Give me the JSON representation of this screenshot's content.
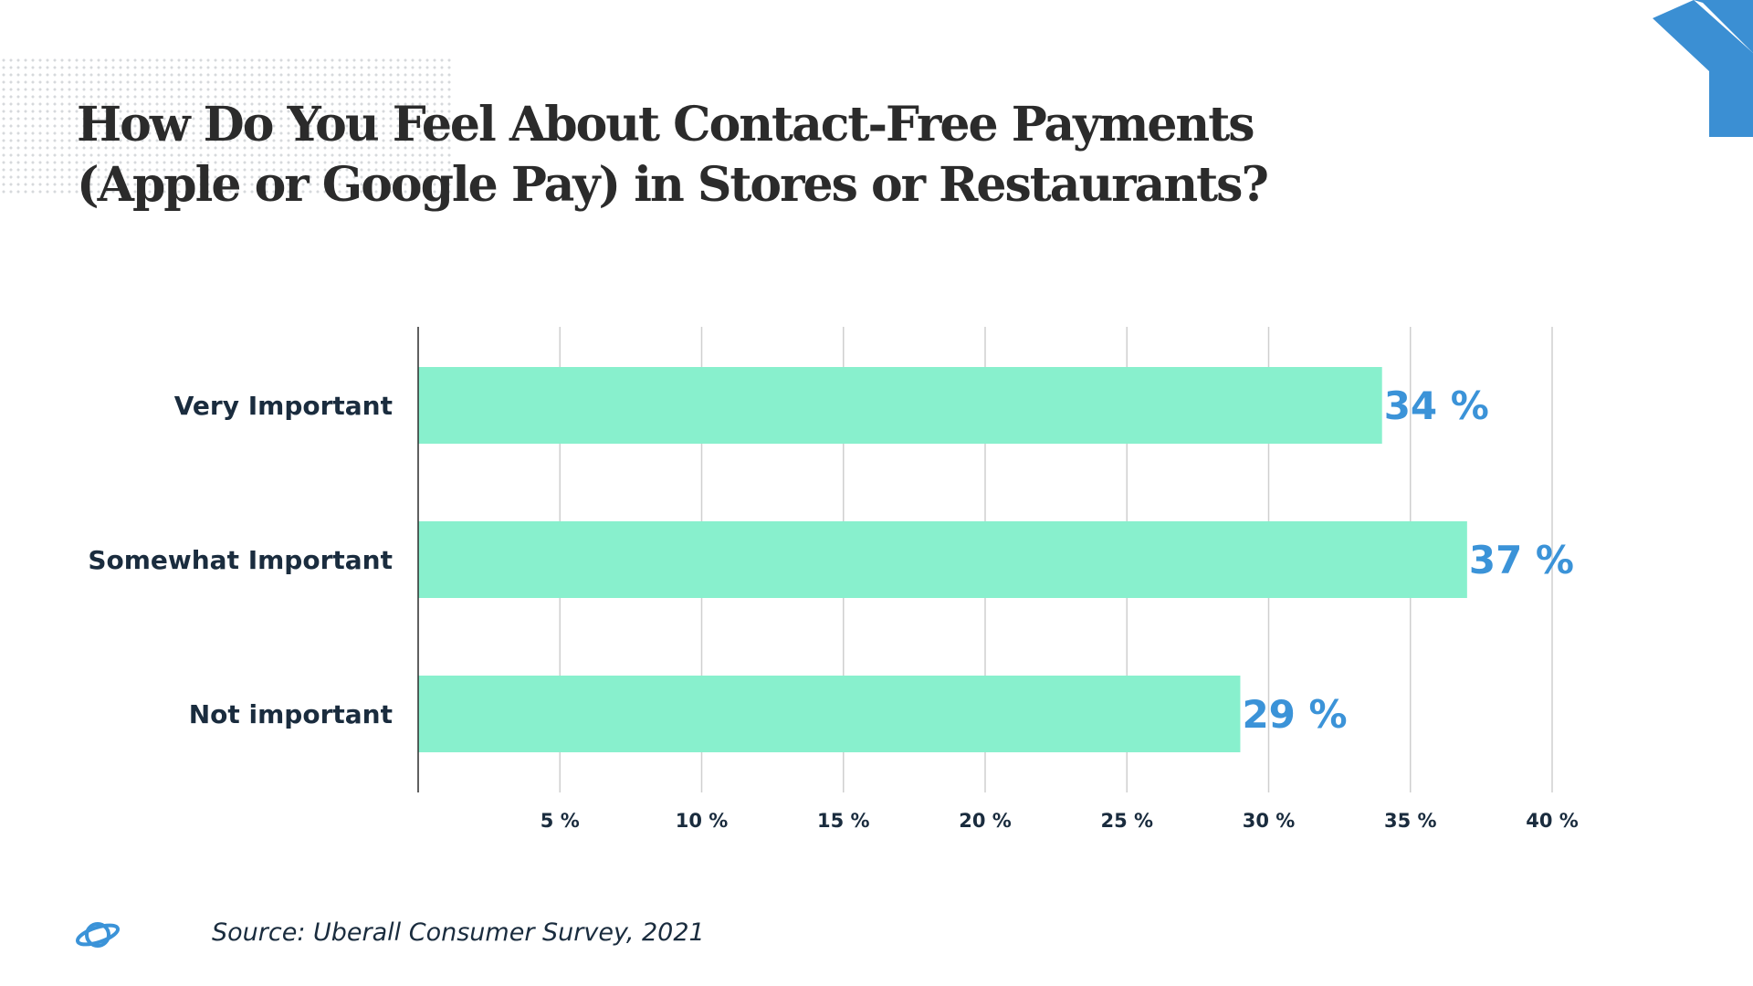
{
  "title_line1": "How Do You Feel About Contact-Free Payments",
  "title_line2": "(Apple or Google Pay) in Stores or Restaurants?",
  "source": "Source: Uberall Consumer Survey, 2021",
  "colors": {
    "bar": "#88f0cd",
    "data_label": "#3b93d8",
    "text": "#1a2c3e",
    "accent_shape": "#3b8fd3"
  },
  "icons": {
    "footer": "planet-icon",
    "corner": "chevron-corner-shape"
  },
  "chart_data": {
    "type": "bar",
    "orientation": "horizontal",
    "categories": [
      "Very Important",
      "Somewhat Important",
      "Not important"
    ],
    "values": [
      34,
      37,
      29
    ],
    "value_labels": [
      "34 %",
      "37 %",
      "29 %"
    ],
    "xlim": [
      0,
      40
    ],
    "ticks": [
      5,
      10,
      15,
      20,
      25,
      30,
      35,
      40
    ],
    "tick_labels": [
      "5 %",
      "10 %",
      "15 %",
      "20 %",
      "25 %",
      "30 %",
      "35 %",
      "40 %"
    ],
    "grid": "vertical",
    "legend": "none"
  }
}
